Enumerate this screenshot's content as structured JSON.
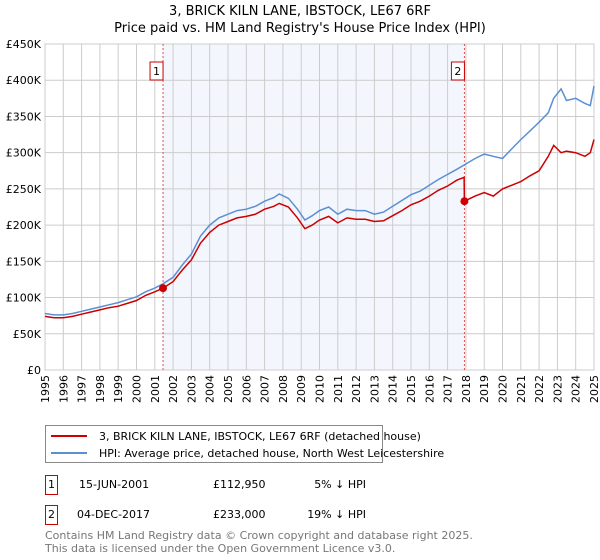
{
  "chart_data": {
    "type": "line",
    "title": "3, BRICK KILN LANE, IBSTOCK, LE67 6RF",
    "subtitle": "Price paid vs. HM Land Registry's House Price Index (HPI)",
    "xlim": [
      1995,
      2025
    ],
    "ylim": [
      0,
      450000
    ],
    "x_ticks": [
      "1995",
      "1996",
      "1997",
      "1998",
      "1999",
      "2000",
      "2001",
      "2002",
      "2003",
      "2004",
      "2005",
      "2006",
      "2007",
      "2008",
      "2009",
      "2010",
      "2011",
      "2012",
      "2013",
      "2014",
      "2015",
      "2016",
      "2017",
      "2018",
      "2019",
      "2020",
      "2021",
      "2022",
      "2023",
      "2024",
      "2025"
    ],
    "y_ticks": [
      {
        "v": 0,
        "label": "£0"
      },
      {
        "v": 50000,
        "label": "£50K"
      },
      {
        "v": 100000,
        "label": "£100K"
      },
      {
        "v": 150000,
        "label": "£150K"
      },
      {
        "v": 200000,
        "label": "£200K"
      },
      {
        "v": 250000,
        "label": "£250K"
      },
      {
        "v": 300000,
        "label": "£300K"
      },
      {
        "v": 350000,
        "label": "£350K"
      },
      {
        "v": 400000,
        "label": "£400K"
      },
      {
        "v": 450000,
        "label": "£450K"
      }
    ],
    "grid": true,
    "shaded_range": [
      2001.45,
      2017.92
    ],
    "series": [
      {
        "name": "3, BRICK KILN LANE, IBSTOCK, LE67 6RF (detached house)",
        "color": "#cc0000",
        "x": [
          1995,
          1995.5,
          1996,
          1996.5,
          1997,
          1997.5,
          1998,
          1998.5,
          1999,
          1999.5,
          2000,
          2000.5,
          2001,
          2001.45,
          2002,
          2002.5,
          2003,
          2003.5,
          2004,
          2004.5,
          2005,
          2005.5,
          2006,
          2006.5,
          2007,
          2007.5,
          2007.8,
          2008.3,
          2008.8,
          2009.2,
          2009.6,
          2010,
          2010.5,
          2011,
          2011.5,
          2012,
          2012.5,
          2013,
          2013.5,
          2014,
          2014.5,
          2015,
          2015.5,
          2016,
          2016.5,
          2017,
          2017.5,
          2017.9,
          2017.92,
          2018.5,
          2019,
          2019.5,
          2020,
          2020.5,
          2021,
          2021.5,
          2022,
          2022.5,
          2022.8,
          2023.2,
          2023.5,
          2024,
          2024.5,
          2024.8,
          2025
        ],
        "values": [
          74000,
          72000,
          72000,
          74000,
          77000,
          80000,
          83000,
          86000,
          88000,
          92000,
          96000,
          103000,
          108000,
          112950,
          122000,
          138000,
          152000,
          175000,
          190000,
          200000,
          205000,
          210000,
          212000,
          215000,
          222000,
          226000,
          230000,
          225000,
          210000,
          195000,
          200000,
          207000,
          212000,
          203000,
          210000,
          208000,
          208000,
          205000,
          206000,
          213000,
          220000,
          228000,
          233000,
          240000,
          248000,
          254000,
          262000,
          266000,
          233000,
          240000,
          245000,
          240000,
          250000,
          255000,
          260000,
          268000,
          275000,
          295000,
          310000,
          300000,
          302000,
          300000,
          295000,
          300000,
          318000
        ]
      },
      {
        "name": "HPI: Average price, detached house, North West Leicestershire",
        "color": "#5b8fd4",
        "x": [
          1995,
          1995.5,
          1996,
          1996.5,
          1997,
          1997.5,
          1998,
          1998.5,
          1999,
          1999.5,
          2000,
          2000.5,
          2001,
          2001.45,
          2002,
          2002.5,
          2003,
          2003.5,
          2004,
          2004.5,
          2005,
          2005.5,
          2006,
          2006.5,
          2007,
          2007.5,
          2007.8,
          2008.3,
          2008.8,
          2009.2,
          2009.6,
          2010,
          2010.5,
          2011,
          2011.5,
          2012,
          2012.5,
          2013,
          2013.5,
          2014,
          2014.5,
          2015,
          2015.5,
          2016,
          2016.5,
          2017,
          2017.5,
          2017.9,
          2018.5,
          2019,
          2019.5,
          2020,
          2020.5,
          2021,
          2021.5,
          2022,
          2022.5,
          2022.8,
          2023.2,
          2023.5,
          2024,
          2024.5,
          2024.8,
          2025
        ],
        "values": [
          78000,
          76000,
          76000,
          78000,
          81000,
          84000,
          87000,
          90000,
          93000,
          97000,
          101000,
          108000,
          113000,
          119000,
          128000,
          145000,
          160000,
          185000,
          200000,
          210000,
          215000,
          220000,
          222000,
          226000,
          233000,
          238000,
          243000,
          237000,
          222000,
          207000,
          213000,
          220000,
          225000,
          215000,
          222000,
          220000,
          220000,
          215000,
          218000,
          226000,
          234000,
          242000,
          247000,
          255000,
          263000,
          270000,
          277000,
          283000,
          292000,
          298000,
          295000,
          292000,
          305000,
          318000,
          330000,
          342000,
          355000,
          375000,
          388000,
          372000,
          375000,
          368000,
          365000,
          392000
        ]
      }
    ],
    "annotations": [
      {
        "label": "1",
        "x": 2001.45,
        "value": 112950
      },
      {
        "label": "2",
        "x": 2017.92,
        "value": 233000
      }
    ]
  },
  "legend": {
    "series1": "3, BRICK KILN LANE, IBSTOCK, LE67 6RF (detached house)",
    "series2": "HPI: Average price, detached house, North West Leicestershire"
  },
  "sales": [
    {
      "num": "1",
      "date": "15-JUN-2001",
      "price": "£112,950",
      "hpi": "5% ↓ HPI"
    },
    {
      "num": "2",
      "date": "04-DEC-2017",
      "price": "£233,000",
      "hpi": "19% ↓ HPI"
    }
  ],
  "footer": {
    "line1": "Contains HM Land Registry data © Crown copyright and database right 2025.",
    "line2": "This data is licensed under the Open Government Licence v3.0."
  }
}
